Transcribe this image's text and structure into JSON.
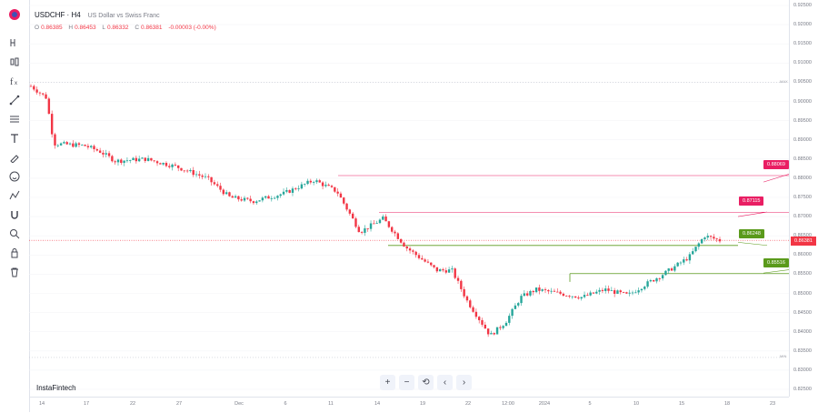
{
  "symbol": {
    "ticker": "USDCHF · H4",
    "description": "US Dollar vs Swiss Franc"
  },
  "ohlc": {
    "o_label": "O",
    "o": "0.86385",
    "h_label": "H",
    "h": "0.86453",
    "l_label": "L",
    "l": "0.86332",
    "c_label": "C",
    "c": "0.86381",
    "change": "-0.00003 (-0.00%)"
  },
  "watermark": "InstaFintech",
  "toolbar": {
    "icons": [
      "crosshair-icon",
      "candles-icon",
      "indicators-icon",
      "trend-line-icon",
      "fib-icon",
      "text-icon",
      "brush-icon",
      "emoji-icon",
      "pattern-icon",
      "magnet-icon",
      "measure-icon",
      "lock-icon",
      "trash-icon"
    ]
  },
  "nav": {
    "zoom_in": "+",
    "zoom_out": "−",
    "reset": "⟲",
    "left": "‹",
    "right": "›"
  },
  "price_axis": [
    "0.92500",
    "0.92000",
    "0.91500",
    "0.91000",
    "0.90500",
    "0.90000",
    "0.89500",
    "0.89000",
    "0.88500",
    "0.88000",
    "0.87500",
    "0.87000",
    "0.86500",
    "0.86000",
    "0.85500",
    "0.85000",
    "0.84500",
    "0.84000",
    "0.83500",
    "0.83000",
    "0.82500"
  ],
  "time_axis": [
    "14",
    "17",
    "22",
    "27",
    "Dec",
    "6",
    "11",
    "14",
    "19",
    "22",
    "12:00",
    "2024",
    "5",
    "10",
    "15",
    "18",
    "23"
  ],
  "levels": {
    "resistance_2": "0.88069",
    "resistance_1": "0.87115",
    "support_1": "0.86248",
    "support_2": "0.85516",
    "current": "0.86381"
  },
  "extremes": {
    "max_label": "MAX",
    "min_label": "MIN"
  },
  "colors": {
    "up": "#26a69a",
    "down": "#f23645",
    "resistance": "#e91e63",
    "support": "#5a9a1b"
  },
  "chart_data": {
    "type": "candlestick",
    "instrument": "USDCHF",
    "timeframe": "H4",
    "ylim": [
      0.825,
      0.925
    ],
    "path": [
      [
        0.0,
        0.904
      ],
      [
        0.02,
        0.901
      ],
      [
        0.03,
        0.889
      ],
      [
        0.07,
        0.8885
      ],
      [
        0.09,
        0.887
      ],
      [
        0.11,
        0.8845
      ],
      [
        0.15,
        0.885
      ],
      [
        0.19,
        0.883
      ],
      [
        0.23,
        0.88
      ],
      [
        0.26,
        0.875
      ],
      [
        0.29,
        0.874
      ],
      [
        0.33,
        0.876
      ],
      [
        0.37,
        0.8795
      ],
      [
        0.4,
        0.8765
      ],
      [
        0.43,
        0.866
      ],
      [
        0.46,
        0.8695
      ],
      [
        0.49,
        0.862
      ],
      [
        0.53,
        0.856
      ],
      [
        0.55,
        0.856
      ],
      [
        0.57,
        0.848
      ],
      [
        0.6,
        0.839
      ],
      [
        0.62,
        0.8425
      ],
      [
        0.64,
        0.849
      ],
      [
        0.66,
        0.851
      ],
      [
        0.69,
        0.85
      ],
      [
        0.72,
        0.849
      ],
      [
        0.75,
        0.851
      ],
      [
        0.78,
        0.8495
      ],
      [
        0.8,
        0.852
      ],
      [
        0.83,
        0.8555
      ],
      [
        0.86,
        0.8595
      ],
      [
        0.88,
        0.865
      ],
      [
        0.9,
        0.8638
      ]
    ]
  }
}
